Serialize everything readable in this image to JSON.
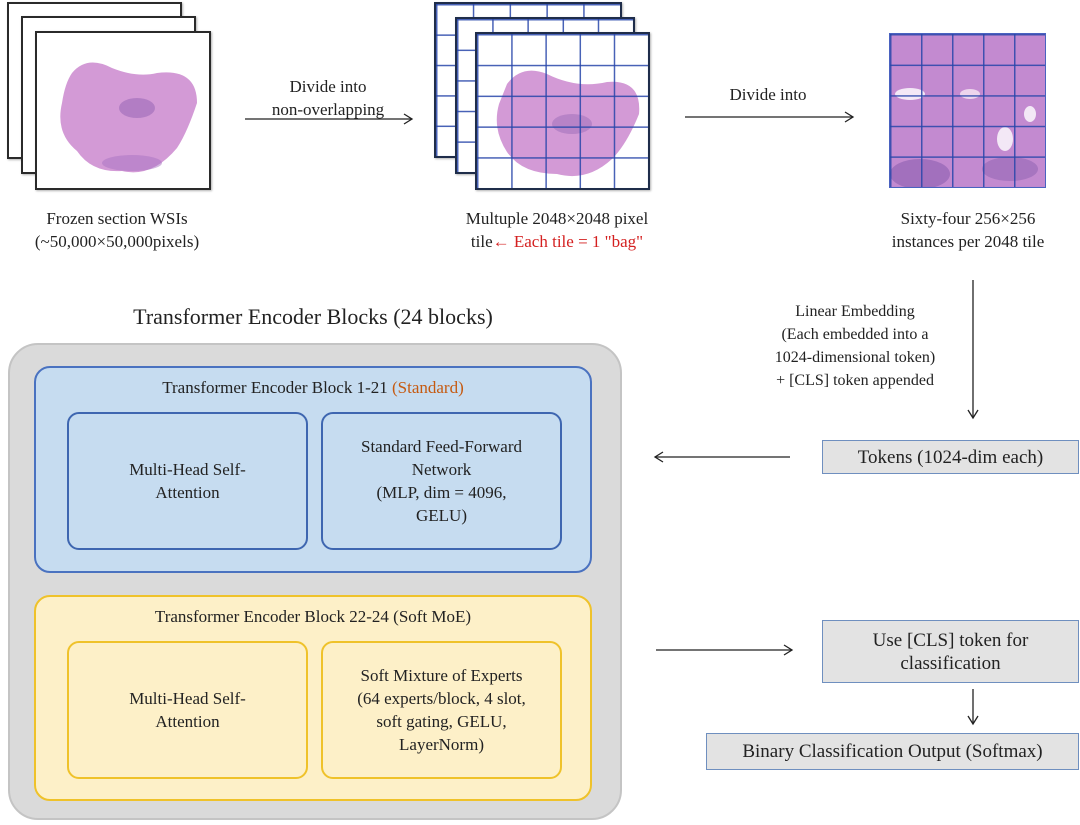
{
  "pipeline": {
    "wsi_caption": [
      "Frozen section WSIs",
      "(~50,000×50,000pixels)"
    ],
    "arrow1_label": [
      "Divide into",
      "non-overlapping"
    ],
    "tile_caption_line1": "Multuple 2048×2048 pixel",
    "tile_caption_line2_prefix": "tile",
    "tile_caption_line2_note": "← Each tile = 1 \"bag\"",
    "arrow2_label": "Divide into",
    "instance_caption": [
      "Sixty-four 256×256",
      "instances per 2048 tile"
    ],
    "embedding_label": [
      "Linear Embedding",
      "(Each embedded into a",
      "1024-dimensional token)",
      "+ [CLS] token appended"
    ],
    "tokens_box": "Tokens (1024-dim each)",
    "cls_box": [
      "Use [CLS] token for",
      "classification"
    ],
    "output_box": "Binary Classification Output (Softmax)"
  },
  "encoder": {
    "title": "Transformer Encoder Blocks (24 blocks)",
    "standard_block": {
      "title": "Transformer Encoder Block 1-21 ",
      "tag": "(Standard)",
      "attention": [
        "Multi-Head Self-",
        "Attention"
      ],
      "ffn": [
        "Standard Feed-Forward",
        "Network",
        "(MLP, dim = 4096,",
        "GELU)"
      ]
    },
    "moe_block": {
      "title": "Transformer Encoder Block 22-24 (Soft MoE)",
      "attention": [
        "Multi-Head Self-",
        "Attention"
      ],
      "moe": [
        "Soft Mixture of Experts",
        "(64 experts/block, 4 slot,",
        "soft gating, GELU,",
        "LayerNorm)"
      ]
    }
  },
  "colors": {
    "note_red": "#d42020",
    "standard_orange": "#c55a11",
    "standard_fill": "#c6dcf0",
    "moe_fill": "#fdf0c8",
    "container_fill": "#dadada",
    "grid_blue": "#2846aa",
    "tissue_pink": "#c98fcf"
  }
}
